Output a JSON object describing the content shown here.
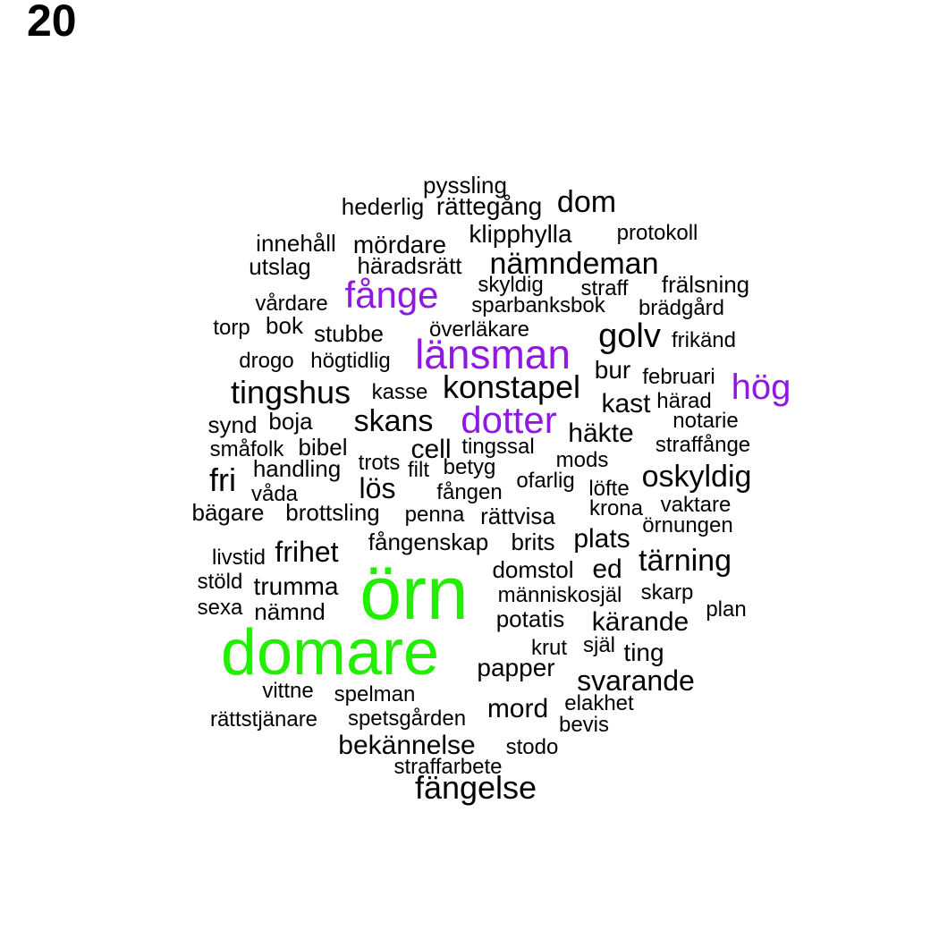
{
  "panel_number": "20",
  "colors": {
    "default": "#000000",
    "green": "#22ee00",
    "purple": "#8f19e0"
  },
  "chart_data": {
    "type": "wordcloud",
    "words": [
      {
        "text": "pyssling",
        "color": "default"
      },
      {
        "text": "hederlig",
        "color": "default"
      },
      {
        "text": "rättegång",
        "color": "default"
      },
      {
        "text": "dom",
        "color": "default"
      },
      {
        "text": "klipphylla",
        "color": "default"
      },
      {
        "text": "protokoll",
        "color": "default"
      },
      {
        "text": "innehåll",
        "color": "default"
      },
      {
        "text": "mördare",
        "color": "default"
      },
      {
        "text": "utslag",
        "color": "default"
      },
      {
        "text": "häradsrätt",
        "color": "default"
      },
      {
        "text": "nämndeman",
        "color": "default"
      },
      {
        "text": "skyldig",
        "color": "default"
      },
      {
        "text": "straff",
        "color": "default"
      },
      {
        "text": "frälsning",
        "color": "default"
      },
      {
        "text": "fånge",
        "color": "purple"
      },
      {
        "text": "vårdare",
        "color": "default"
      },
      {
        "text": "sparbanksbok",
        "color": "default"
      },
      {
        "text": "brädgård",
        "color": "default"
      },
      {
        "text": "torp",
        "color": "default"
      },
      {
        "text": "bok",
        "color": "default"
      },
      {
        "text": "stubbe",
        "color": "default"
      },
      {
        "text": "överläkare",
        "color": "default"
      },
      {
        "text": "golv",
        "color": "default"
      },
      {
        "text": "frikänd",
        "color": "default"
      },
      {
        "text": "drogo",
        "color": "default"
      },
      {
        "text": "högtidlig",
        "color": "default"
      },
      {
        "text": "länsman",
        "color": "purple"
      },
      {
        "text": "bur",
        "color": "default"
      },
      {
        "text": "februari",
        "color": "default"
      },
      {
        "text": "hög",
        "color": "purple"
      },
      {
        "text": "tingshus",
        "color": "default"
      },
      {
        "text": "kasse",
        "color": "default"
      },
      {
        "text": "konstapel",
        "color": "default"
      },
      {
        "text": "kast",
        "color": "default"
      },
      {
        "text": "härad",
        "color": "default"
      },
      {
        "text": "synd",
        "color": "default"
      },
      {
        "text": "boja",
        "color": "default"
      },
      {
        "text": "skans",
        "color": "default"
      },
      {
        "text": "dotter",
        "color": "purple"
      },
      {
        "text": "notarie",
        "color": "default"
      },
      {
        "text": "häkte",
        "color": "default"
      },
      {
        "text": "småfolk",
        "color": "default"
      },
      {
        "text": "bibel",
        "color": "default"
      },
      {
        "text": "cell",
        "color": "default"
      },
      {
        "text": "tingssal",
        "color": "default"
      },
      {
        "text": "straffånge",
        "color": "default"
      },
      {
        "text": "handling",
        "color": "default"
      },
      {
        "text": "trots",
        "color": "default"
      },
      {
        "text": "filt",
        "color": "default"
      },
      {
        "text": "betyg",
        "color": "default"
      },
      {
        "text": "mods",
        "color": "default"
      },
      {
        "text": "fri",
        "color": "default"
      },
      {
        "text": "oskyldig",
        "color": "default"
      },
      {
        "text": "våda",
        "color": "default"
      },
      {
        "text": "lös",
        "color": "default"
      },
      {
        "text": "fången",
        "color": "default"
      },
      {
        "text": "ofarlig",
        "color": "default"
      },
      {
        "text": "löfte",
        "color": "default"
      },
      {
        "text": "bägare",
        "color": "default"
      },
      {
        "text": "brottsling",
        "color": "default"
      },
      {
        "text": "penna",
        "color": "default"
      },
      {
        "text": "rättvisa",
        "color": "default"
      },
      {
        "text": "krona",
        "color": "default"
      },
      {
        "text": "vaktare",
        "color": "default"
      },
      {
        "text": "örnungen",
        "color": "default"
      },
      {
        "text": "fångenskap",
        "color": "default"
      },
      {
        "text": "brits",
        "color": "default"
      },
      {
        "text": "plats",
        "color": "default"
      },
      {
        "text": "livstid",
        "color": "default"
      },
      {
        "text": "frihet",
        "color": "default"
      },
      {
        "text": "tärning",
        "color": "default"
      },
      {
        "text": "domstol",
        "color": "default"
      },
      {
        "text": "ed",
        "color": "default"
      },
      {
        "text": "stöld",
        "color": "default"
      },
      {
        "text": "trumma",
        "color": "default"
      },
      {
        "text": "örn",
        "color": "green"
      },
      {
        "text": "människosjäl",
        "color": "default"
      },
      {
        "text": "skarp",
        "color": "default"
      },
      {
        "text": "sexa",
        "color": "default"
      },
      {
        "text": "nämnd",
        "color": "default"
      },
      {
        "text": "plan",
        "color": "default"
      },
      {
        "text": "potatis",
        "color": "default"
      },
      {
        "text": "kärande",
        "color": "default"
      },
      {
        "text": "krut",
        "color": "default"
      },
      {
        "text": "själ",
        "color": "default"
      },
      {
        "text": "ting",
        "color": "default"
      },
      {
        "text": "domare",
        "color": "green"
      },
      {
        "text": "papper",
        "color": "default"
      },
      {
        "text": "svarande",
        "color": "default"
      },
      {
        "text": "vittne",
        "color": "default"
      },
      {
        "text": "spelman",
        "color": "default"
      },
      {
        "text": "elakhet",
        "color": "default"
      },
      {
        "text": "rättstjänare",
        "color": "default"
      },
      {
        "text": "spetsgården",
        "color": "default"
      },
      {
        "text": "mord",
        "color": "default"
      },
      {
        "text": "bevis",
        "color": "default"
      },
      {
        "text": "bekännelse",
        "color": "default"
      },
      {
        "text": "stodo",
        "color": "default"
      },
      {
        "text": "straffarbete",
        "color": "default"
      },
      {
        "text": "fängelse",
        "color": "default"
      }
    ]
  }
}
